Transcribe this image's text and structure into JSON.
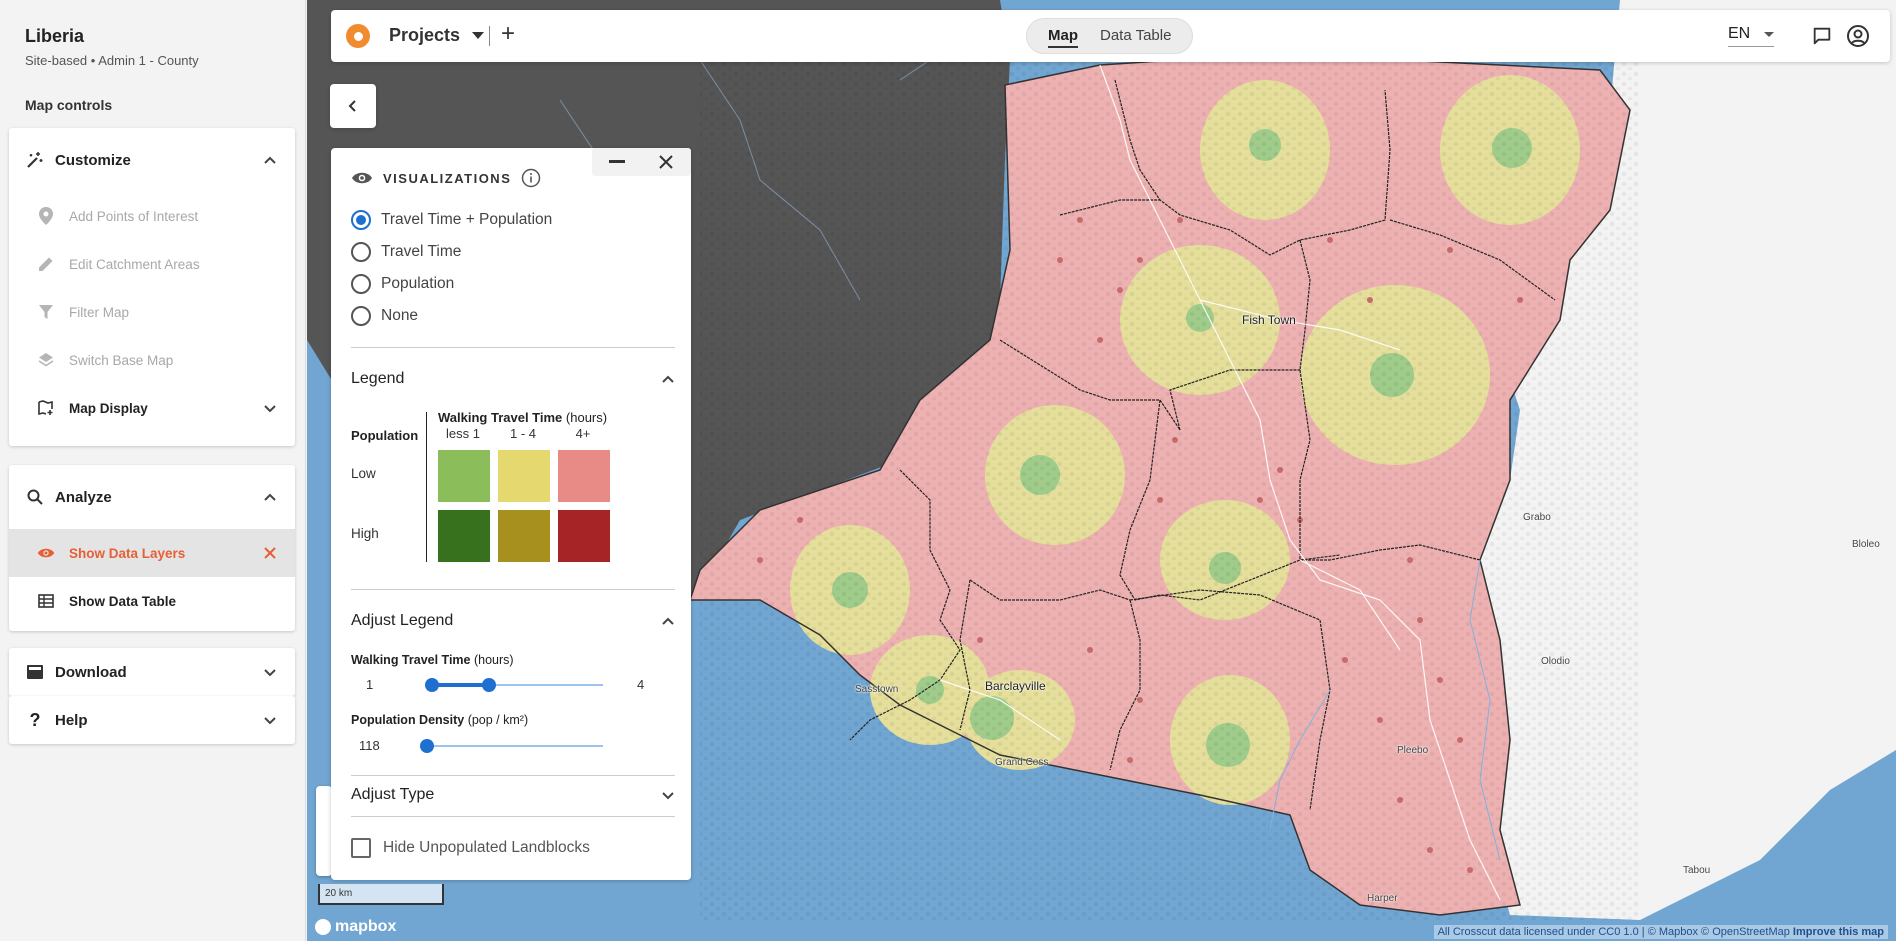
{
  "sidebar": {
    "title": "Liberia",
    "subtitle": "Site-based • Admin 1 - County",
    "map_controls": "Map controls",
    "customize": {
      "label": "Customize",
      "items": [
        {
          "label": "Add Points of Interest",
          "icon": "pin-icon"
        },
        {
          "label": "Edit Catchment Areas",
          "icon": "pencil-icon"
        },
        {
          "label": "Filter Map",
          "icon": "filter-icon"
        },
        {
          "label": "Switch Base Map",
          "icon": "layers-icon"
        }
      ],
      "map_display": "Map Display"
    },
    "analyze": {
      "label": "Analyze",
      "show_data_layers": "Show Data Layers",
      "show_data_table": "Show Data Table"
    },
    "download": "Download",
    "help": "Help"
  },
  "topbar": {
    "projects": "Projects",
    "plus": "+",
    "tabs": [
      "Map",
      "Data Table"
    ],
    "active_tab": "Map",
    "language": "EN"
  },
  "panel": {
    "heading": "VISUALIZATIONS",
    "options": [
      "Travel Time + Population",
      "Travel Time",
      "Population",
      "None"
    ],
    "selected_option": "Travel Time + Population",
    "legend": {
      "title": "Legend",
      "travel_time_bold": "Walking Travel Time",
      "travel_time_unit": "(hours)",
      "population": "Population",
      "columns": [
        "less 1",
        "1 - 4",
        "4+"
      ],
      "rows": [
        "Low",
        "High"
      ],
      "colors_low": [
        "#8bbe5a",
        "#e5d86e",
        "#e88a86"
      ],
      "colors_high": [
        "#37711d",
        "#a8901e",
        "#a72426"
      ]
    },
    "adjust_legend": {
      "title": "Adjust Legend",
      "travel_bold": "Walking Travel Time",
      "travel_unit": "(hours)",
      "travel_min": "1",
      "travel_max": "4",
      "travel_range": [
        1,
        4
      ],
      "density_bold": "Population Density",
      "density_unit": "(pop / km²)",
      "density_value": "118"
    },
    "adjust_type": "Adjust Type",
    "hide_unpopulated": "Hide Unpopulated Landblocks"
  },
  "map": {
    "places": [
      "Fish Town",
      "Barclayville",
      "Sasstown",
      "Grand Cess",
      "Pleebo",
      "Harper",
      "Grabo",
      "Olodio",
      "Tabou",
      "Bloleo"
    ],
    "scale_label": "20 km",
    "mapbox": "mapbox",
    "attribution": "All Crosscut data licensed under CC0 1.0 | © Mapbox © OpenStreetMap",
    "improve": "Improve this map"
  }
}
